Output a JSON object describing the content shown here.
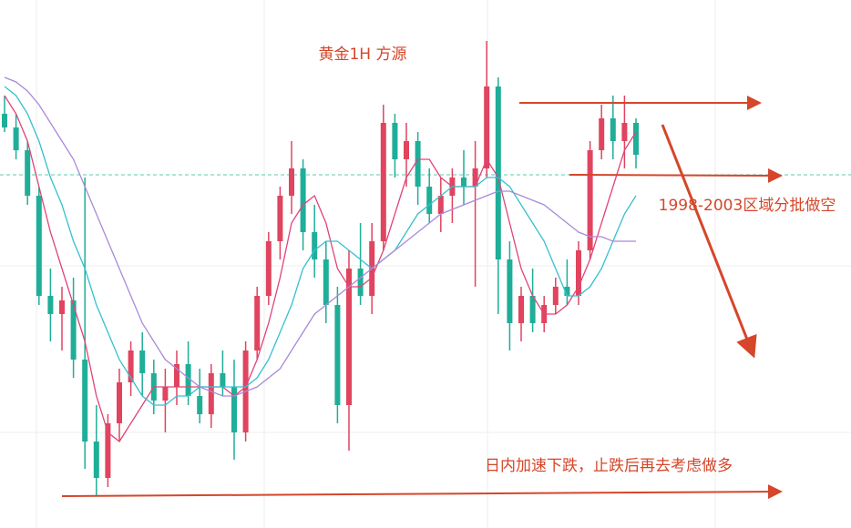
{
  "chart_data": {
    "type": "candlestick",
    "title": "黄金1H  方源",
    "annotations": [
      "1998-2003区域分批做空",
      "日内加速下跌，止跌后再去考虑做多"
    ],
    "ylim": [
      1956.5,
      2014.5
    ],
    "up_color": "#e0445f",
    "down_color": "#1fae98",
    "price_line": 1995.3,
    "candles": [
      [
        2002,
        2004,
        2000,
        2000.5
      ],
      [
        2000.5,
        2002,
        1997,
        1998
      ],
      [
        1998,
        1999,
        1992,
        1993
      ],
      [
        1993,
        1994,
        1981,
        1982
      ],
      [
        1982,
        1985,
        1977,
        1980
      ],
      [
        1980,
        1983,
        1976,
        1981.5
      ],
      [
        1981.5,
        1984,
        1973,
        1975
      ],
      [
        1975,
        1995,
        1963,
        1966
      ],
      [
        1966,
        1970,
        1960,
        1962
      ],
      [
        1962,
        1969,
        1961,
        1968
      ],
      [
        1968,
        1974,
        1966,
        1972.5
      ],
      [
        1972.5,
        1977,
        1971,
        1976
      ],
      [
        1976,
        1978,
        1971,
        1973.5
      ],
      [
        1973.5,
        1975,
        1969,
        1970.5
      ],
      [
        1970.5,
        1974,
        1967,
        1972
      ],
      [
        1972,
        1976,
        1970,
        1974.5
      ],
      [
        1974.5,
        1977,
        1970,
        1971
      ],
      [
        1971,
        1974,
        1968,
        1969
      ],
      [
        1969,
        1974.5,
        1967.5,
        1973.5
      ],
      [
        1973.5,
        1976,
        1971,
        1972
      ],
      [
        1972,
        1975,
        1964,
        1967
      ],
      [
        1967,
        1977,
        1966,
        1976
      ],
      [
        1976,
        1983,
        1975,
        1982
      ],
      [
        1982,
        1989,
        1981,
        1988
      ],
      [
        1988,
        1994,
        1986,
        1993
      ],
      [
        1993,
        1999,
        1991,
        1996
      ],
      [
        1996,
        1997,
        1987,
        1989
      ],
      [
        1989,
        1992,
        1984,
        1986
      ],
      [
        1986,
        1988,
        1979,
        1981
      ],
      [
        1981,
        1983,
        1968,
        1970
      ],
      [
        1970,
        1987,
        1965,
        1985
      ],
      [
        1985,
        1990,
        1981,
        1982
      ],
      [
        1982,
        1990,
        1980,
        1988
      ],
      [
        1988,
        2003,
        1987,
        2001
      ],
      [
        2001,
        2002,
        1995,
        1997
      ],
      [
        1997,
        2001,
        1994,
        1999
      ],
      [
        1999,
        2000,
        1992,
        1994
      ],
      [
        1994,
        1996,
        1990,
        1991
      ],
      [
        1991,
        1995,
        1989,
        1993
      ],
      [
        1993,
        1996,
        1990,
        1995
      ],
      [
        1995,
        1998,
        1992,
        1994
      ],
      [
        1994,
        1999,
        1983,
        1996
      ],
      [
        1996,
        2010,
        1995,
        2005
      ],
      [
        2005,
        2006,
        1980,
        1986
      ],
      [
        1986,
        1988,
        1976,
        1979
      ],
      [
        1979,
        1983,
        1977,
        1982
      ],
      [
        1982,
        1985,
        1978,
        1979
      ],
      [
        1979,
        1982,
        1978,
        1981
      ],
      [
        1981,
        1984,
        1980,
        1983
      ],
      [
        1983,
        1986,
        1981,
        1982
      ],
      [
        1982,
        1988,
        1981,
        1987
      ],
      [
        1987,
        1999,
        1986,
        1998
      ],
      [
        1998,
        2003,
        1997,
        2001.5
      ],
      [
        2001.5,
        2004,
        1997,
        1999
      ],
      [
        1999,
        2004,
        1996,
        2001
      ],
      [
        2001,
        2001.5,
        1996,
        1997.5
      ]
    ],
    "series": [
      {
        "color": "#e0447a",
        "values": [
          2004,
          2002,
          1999,
          1994,
          1989,
          1985,
          1981,
          1977,
          1971,
          1967,
          1966,
          1968,
          1970,
          1972,
          1972,
          1972,
          1972,
          1972,
          1972,
          1972,
          1971,
          1972,
          1975,
          1979,
          1984,
          1990,
          1992,
          1993,
          1990,
          1985,
          1983,
          1983,
          1984,
          1987,
          1991,
          1995,
          1997,
          1997,
          1995,
          1994,
          1994,
          1994,
          1997,
          1995,
          1990,
          1985,
          1982,
          1980,
          1980,
          1981,
          1983,
          1986,
          1990,
          1994,
          1998,
          2000
        ]
      },
      {
        "color": "#35c0d0",
        "values": [
          2005,
          2004,
          2002,
          1999,
          1995,
          1992,
          1988,
          1985,
          1981,
          1978,
          1975,
          1973,
          1971,
          1970,
          1970,
          1971,
          1971,
          1972,
          1972,
          1972,
          1972,
          1972,
          1973,
          1975,
          1978,
          1981,
          1985,
          1987,
          1988,
          1988,
          1987,
          1986,
          1985,
          1986,
          1987,
          1989,
          1991,
          1992,
          1993,
          1994,
          1994,
          1994,
          1995,
          1995,
          1994,
          1992,
          1990,
          1988,
          1985,
          1982,
          1982,
          1983,
          1985,
          1988,
          1991,
          1993
        ]
      },
      {
        "color": "#a98ad8",
        "values": [
          2006,
          2005.5,
          2004.5,
          2003,
          2001,
          1999,
          1997,
          1994,
          1991,
          1988,
          1985,
          1982,
          1979,
          1977,
          1975,
          1974,
          1973,
          1972,
          1971.5,
          1971,
          1971,
          1971.5,
          1972,
          1973,
          1974,
          1976,
          1978,
          1980,
          1981,
          1982,
          1983,
          1984,
          1985,
          1986,
          1987,
          1988,
          1989,
          1990,
          1991,
          1991.5,
          1992,
          1992.5,
          1993,
          1993.5,
          1993.5,
          1993,
          1992.5,
          1992,
          1991,
          1990,
          1989,
          1988.5,
          1988.5,
          1988,
          1988,
          1988
        ]
      }
    ]
  }
}
